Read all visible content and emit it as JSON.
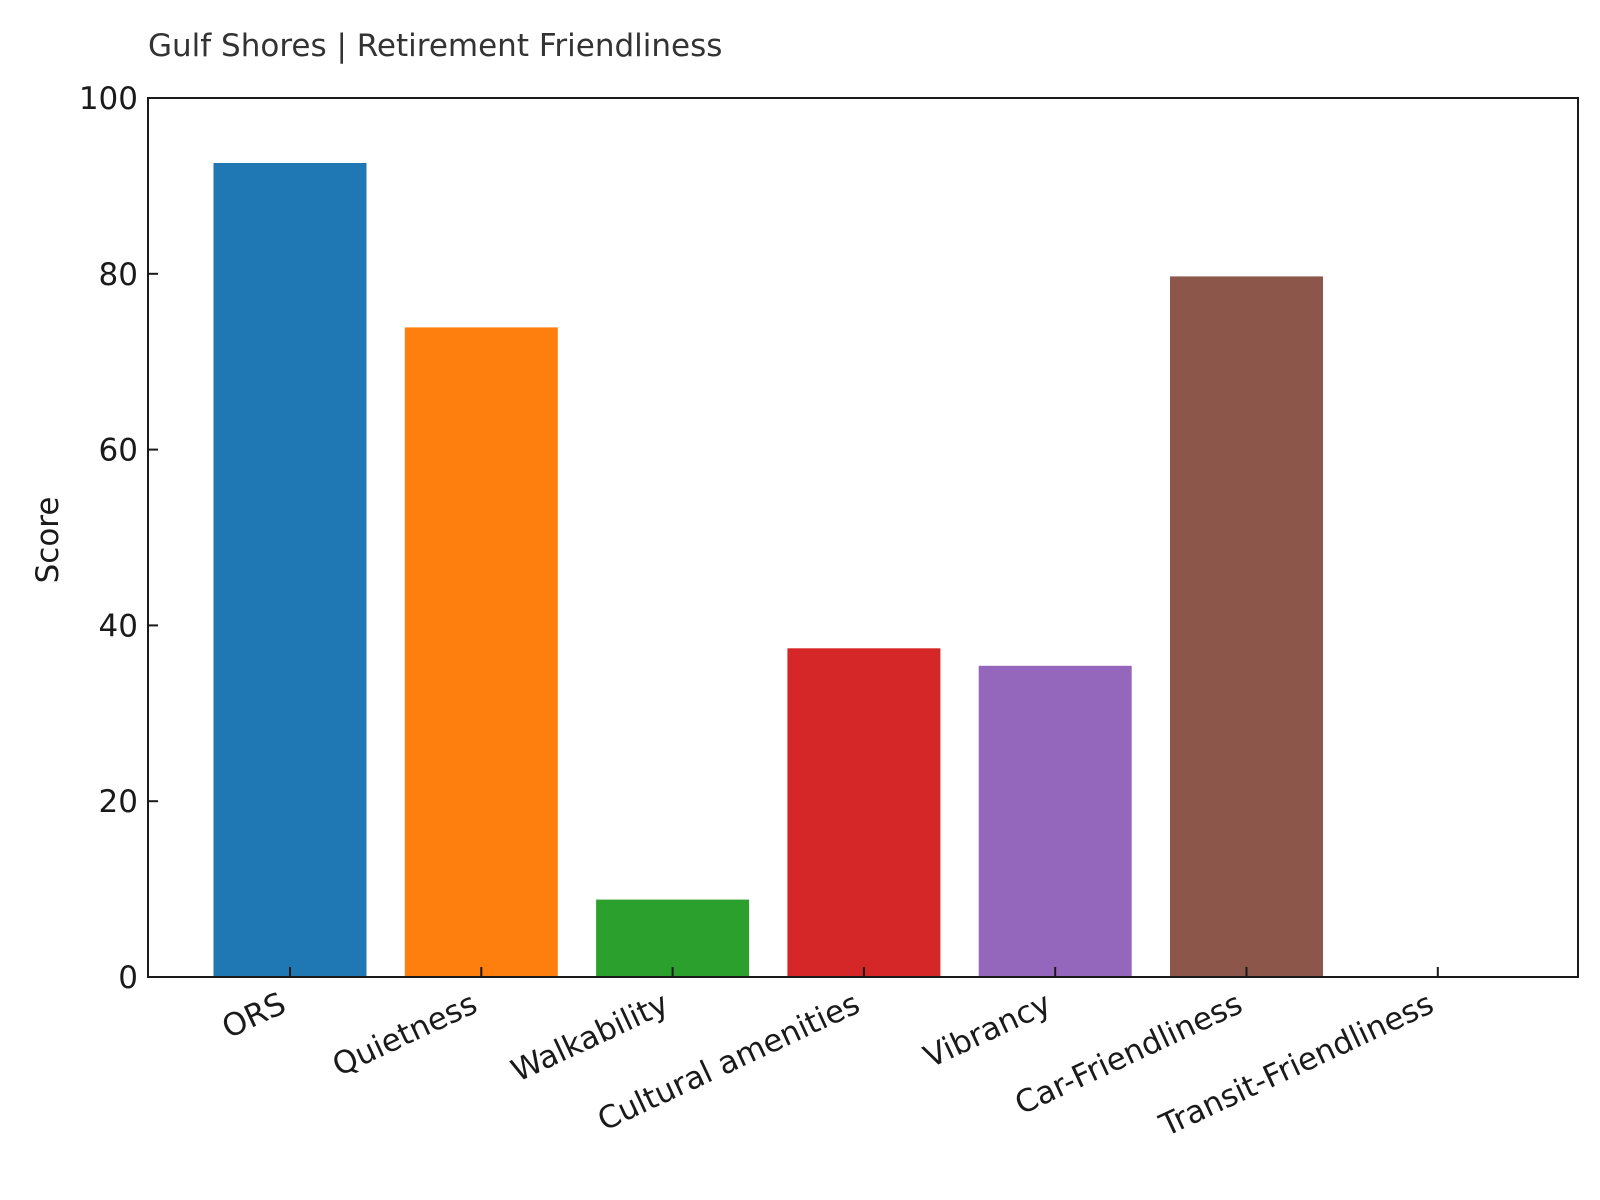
{
  "chart_data": {
    "type": "bar",
    "title": "Gulf Shores | Retirement Friendliness",
    "xlabel": "",
    "ylabel": "Score",
    "ylim": [
      0,
      100
    ],
    "yticks": [
      0,
      20,
      40,
      60,
      80,
      100
    ],
    "grid": false,
    "categories": [
      "ORS",
      "Quietness",
      "Walkability",
      "Cultural amenities",
      "Vibrancy",
      "Car-Friendliness",
      "Transit-Friendliness"
    ],
    "values": [
      92.6,
      73.9,
      8.8,
      37.4,
      35.4,
      79.7,
      0
    ],
    "colors": [
      "#1f77b4",
      "#ff7f0e",
      "#2ca02c",
      "#d62728",
      "#9467bd",
      "#8c564b",
      "#e377c2"
    ]
  }
}
